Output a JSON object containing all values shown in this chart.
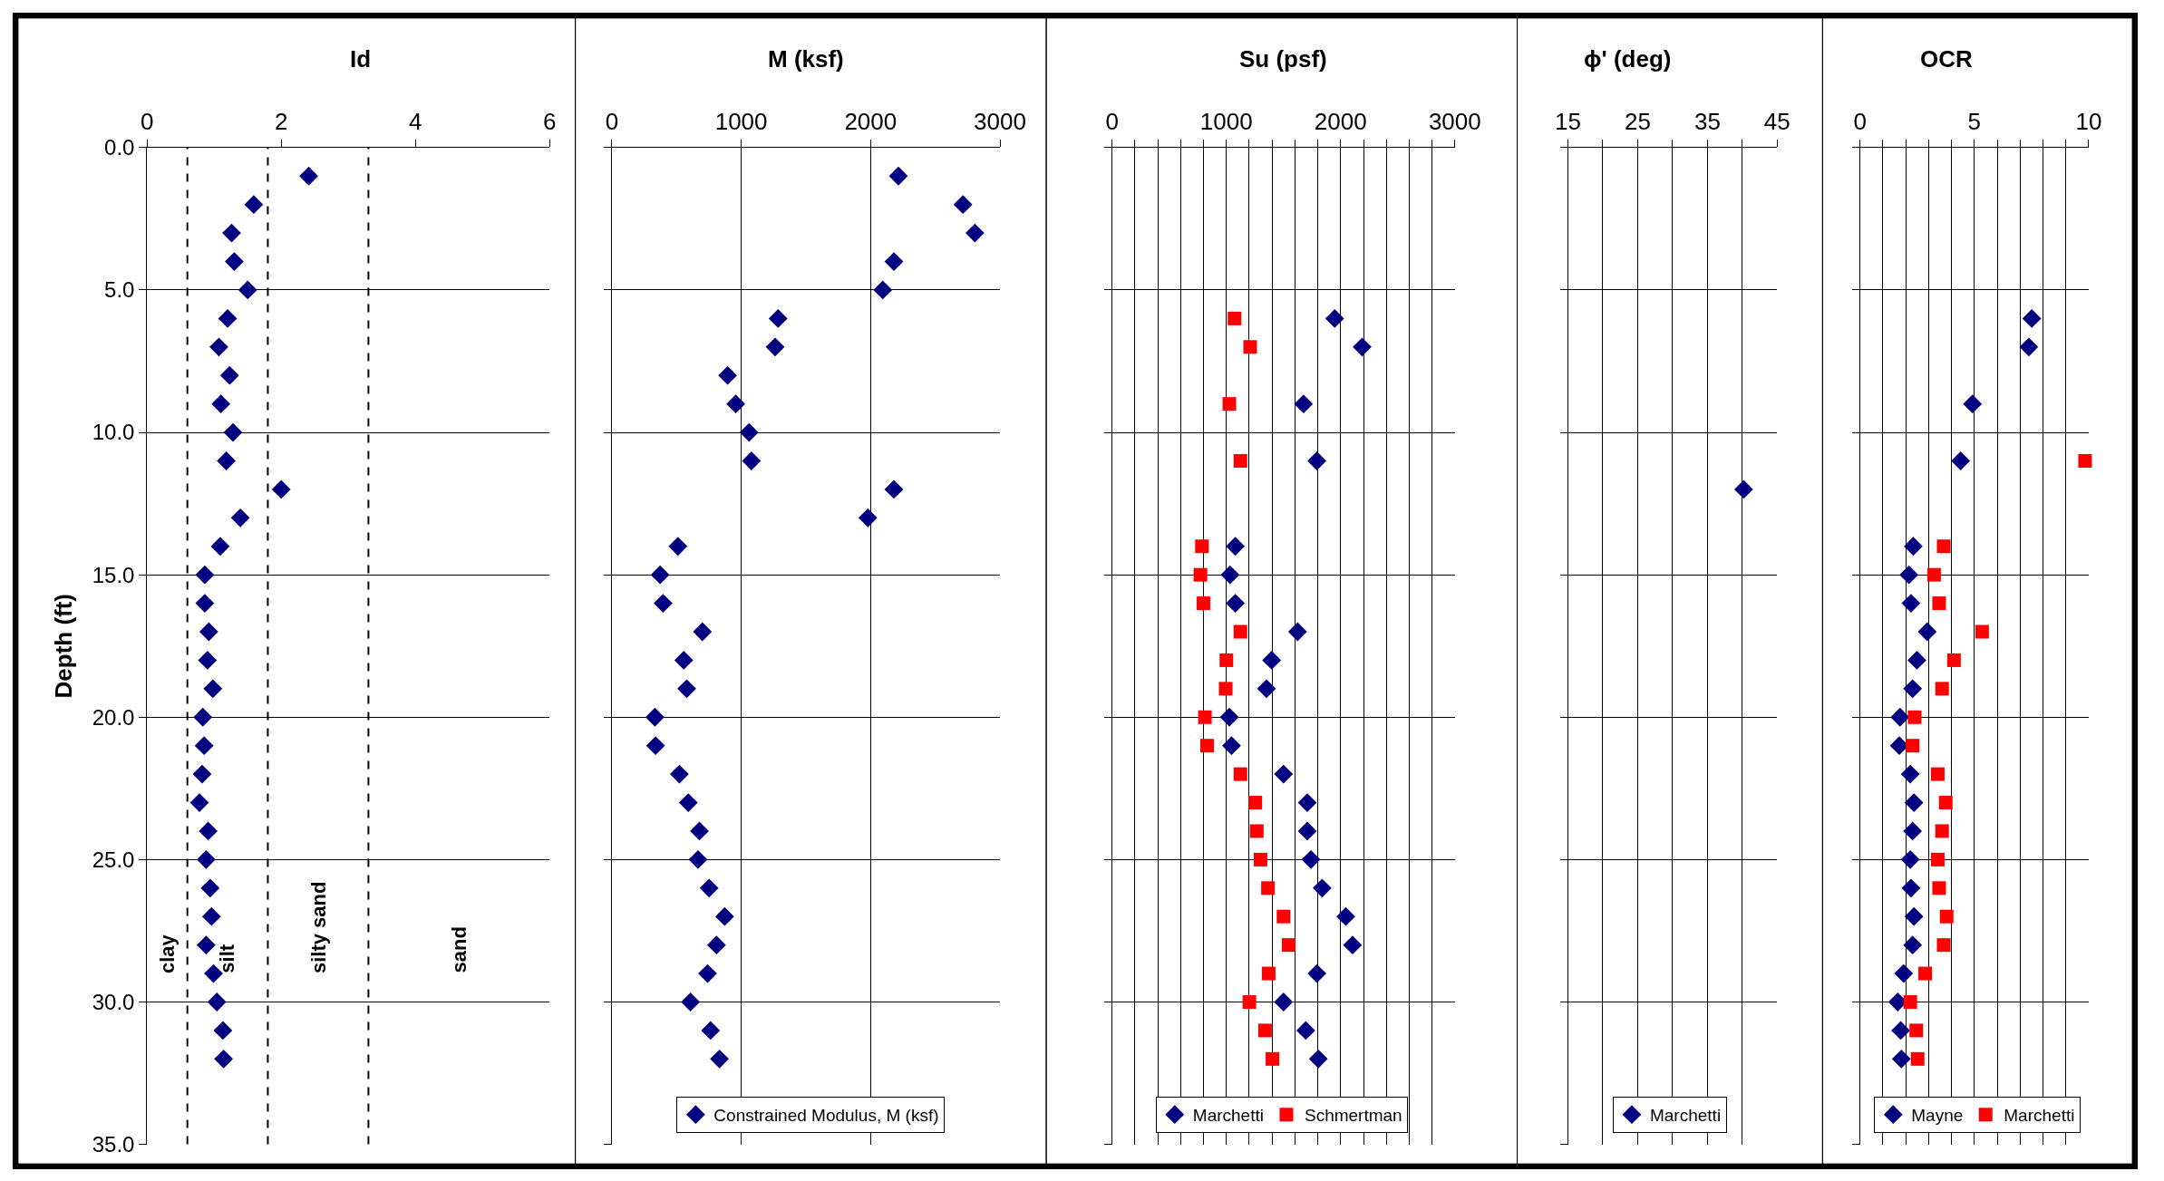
{
  "chart_data": [
    {
      "type": "scatter",
      "title": "Id",
      "ylabel": "Depth (ft)",
      "xlim": [
        0,
        6
      ],
      "xticks": [
        0,
        2,
        4,
        6
      ],
      "ylim": [
        35,
        0
      ],
      "yticks": [
        {
          "value": 0,
          "label": "0.0"
        },
        {
          "value": 5,
          "label": "5.0"
        },
        {
          "value": 10,
          "label": "10.0"
        },
        {
          "value": 15,
          "label": "15.0"
        },
        {
          "value": 20,
          "label": "20.0"
        },
        {
          "value": 25,
          "label": "25.0"
        },
        {
          "value": 30,
          "label": "30.0"
        },
        {
          "value": 35,
          "label": "35.0"
        }
      ],
      "grid": "y",
      "marker": "diamond",
      "series": [
        {
          "color": "#000080",
          "x": [
            2.41,
            1.59,
            1.26,
            1.3,
            1.5,
            1.2,
            1.07,
            1.23,
            1.1,
            1.28,
            1.18,
            2.0,
            1.39,
            1.09,
            0.86,
            0.86,
            0.92,
            0.9,
            0.98,
            0.83,
            0.85,
            0.82,
            0.78,
            0.91,
            0.88,
            0.94,
            0.96,
            0.88,
            0.99,
            1.04,
            1.13,
            1.14
          ],
          "values": [
            1,
            2,
            3,
            4,
            5,
            6,
            7,
            8,
            9,
            10,
            11,
            12,
            13,
            14,
            15,
            16,
            17,
            18,
            19,
            20,
            21,
            22,
            23,
            24,
            25,
            26,
            27,
            28,
            29,
            30,
            31,
            32
          ]
        }
      ],
      "ref_lines": [
        {
          "axis": "x",
          "value": 0.6,
          "color": "#000000",
          "line_style": "dashed"
        },
        {
          "axis": "x",
          "value": 1.8,
          "color": "#000000",
          "line_style": "dashed"
        },
        {
          "axis": "x",
          "value": 3.3,
          "color": "#000000",
          "line_style": "dashed"
        }
      ],
      "annotations": [
        "clay",
        "silt",
        "silty sand",
        "sand"
      ]
    },
    {
      "type": "scatter",
      "title": "M (ksf)",
      "xlim": [
        0,
        3000
      ],
      "xticks": [
        0,
        1000,
        2000,
        3000
      ],
      "ylim": [
        35,
        0
      ],
      "yticks": [
        0,
        5,
        10,
        15,
        20,
        25,
        30,
        35
      ],
      "tick_labels": "x",
      "grid": true,
      "legend": "bottom",
      "marker": "diamond",
      "series": [
        {
          "name": "Constrained Modulus, M (ksf)",
          "color": "#000080",
          "x": [
            2215,
            2714,
            2806,
            2180,
            2094,
            1285,
            1262,
            895,
            958,
            1061,
            1079,
            2180,
            1979,
            511,
            373,
            396,
            700,
            556,
            579,
            333,
            338,
            522,
            591,
            677,
            666,
            752,
            872,
            809,
            740,
            608,
            763,
            832
          ],
          "values": [
            1,
            2,
            3,
            4,
            5,
            6,
            7,
            8,
            9,
            10,
            11,
            12,
            13,
            14,
            15,
            16,
            17,
            18,
            19,
            20,
            21,
            22,
            23,
            24,
            25,
            26,
            27,
            28,
            29,
            30,
            31,
            32
          ]
        }
      ]
    },
    {
      "type": "scatter",
      "title": "Su (psf)",
      "xlim": [
        0,
        3000
      ],
      "xticks": [
        0,
        {
          "value": 200,
          "label": null
        },
        {
          "value": 400,
          "label": null
        },
        {
          "value": 600,
          "label": null
        },
        {
          "value": 800,
          "label": null
        },
        1000,
        {
          "value": 1200,
          "label": null
        },
        {
          "value": 1400,
          "label": null
        },
        {
          "value": 1600,
          "label": null
        },
        {
          "value": 1800,
          "label": null
        },
        2000,
        {
          "value": 2200,
          "label": null
        },
        {
          "value": 2400,
          "label": null
        },
        {
          "value": 2600,
          "label": null
        },
        {
          "value": 2800,
          "label": null
        },
        3000
      ],
      "ylim": [
        35,
        0
      ],
      "yticks": [
        0,
        5,
        10,
        15,
        20,
        25,
        30,
        35
      ],
      "tick_labels": "x",
      "grid": true,
      "legend": "bottom",
      "series": [
        {
          "name": "Marchetti",
          "color": "#000080",
          "marker": "diamond",
          "x": [
            1948,
            2188,
            1675,
            1792,
            1078,
            1032,
            1078,
            1623,
            1396,
            1351,
            1026,
            1045,
            1500,
            1708,
            1708,
            1740,
            1838,
            2045,
            2104,
            1792,
            1500,
            1695,
            1805
          ],
          "values": [
            6,
            7,
            9,
            11,
            14,
            15,
            16,
            17,
            18,
            19,
            20,
            21,
            22,
            23,
            24,
            25,
            26,
            27,
            28,
            29,
            30,
            31,
            32
          ]
        },
        {
          "name": "Schmertman",
          "color": "#ff0000",
          "marker": "square",
          "x": [
            1071,
            1208,
            1026,
            1123,
            786,
            773,
            799,
            1123,
            1000,
            994,
            812,
            831,
            1123,
            1253,
            1266,
            1299,
            1364,
            1500,
            1545,
            1370,
            1201,
            1338,
            1403
          ],
          "values": [
            6,
            7,
            9,
            11,
            14,
            15,
            16,
            17,
            18,
            19,
            20,
            21,
            22,
            23,
            24,
            25,
            26,
            27,
            28,
            29,
            30,
            31,
            32
          ]
        }
      ]
    },
    {
      "type": "scatter",
      "title": "ϕ' (deg)",
      "xlim": [
        15,
        45
      ],
      "xticks": [
        15,
        {
          "value": 20,
          "label": null
        },
        25,
        {
          "value": 30,
          "label": null
        },
        35,
        {
          "value": 40,
          "label": null
        },
        45
      ],
      "ylim": [
        35,
        0
      ],
      "yticks": [
        0,
        5,
        10,
        15,
        20,
        25,
        30,
        35
      ],
      "tick_labels": "x",
      "grid": true,
      "legend": "bottom",
      "marker": "diamond",
      "series": [
        {
          "name": "Marchetti",
          "color": "#000080",
          "x": [
            40.2
          ],
          "values": [
            12
          ]
        }
      ]
    },
    {
      "type": "scatter",
      "title": "OCR",
      "xlim": [
        0,
        10
      ],
      "xticks": [
        0,
        {
          "value": 1,
          "label": null
        },
        {
          "value": 2,
          "label": null
        },
        {
          "value": 3,
          "label": null
        },
        {
          "value": 4,
          "label": null
        },
        5,
        {
          "value": 6,
          "label": null
        },
        {
          "value": 7,
          "label": null
        },
        {
          "value": 8,
          "label": null
        },
        {
          "value": 9,
          "label": null
        },
        10
      ],
      "ylim": [
        35,
        0
      ],
      "yticks": [
        0,
        5,
        10,
        15,
        20,
        25,
        30,
        35
      ],
      "tick_labels": "x",
      "grid": true,
      "legend": "bottom",
      "series": [
        {
          "name": "Mayne",
          "color": "#000080",
          "marker": "diamond",
          "x": [
            7.51,
            7.38,
            4.92,
            4.4,
            2.33,
            2.14,
            2.23,
            2.94,
            2.49,
            2.3,
            1.75,
            1.72,
            2.2,
            2.36,
            2.3,
            2.2,
            2.23,
            2.36,
            2.3,
            1.91,
            1.65,
            1.78,
            1.81
          ],
          "values": [
            6,
            7,
            9,
            11,
            14,
            15,
            16,
            17,
            18,
            19,
            20,
            21,
            22,
            23,
            24,
            25,
            26,
            27,
            28,
            29,
            30,
            31,
            32
          ]
        },
        {
          "name": "Marchetti",
          "color": "#ff0000",
          "marker": "square",
          "x": [
            9.84,
            3.66,
            3.24,
            3.46,
            5.34,
            4.11,
            3.59,
            2.39,
            2.3,
            3.4,
            3.75,
            3.59,
            3.4,
            3.46,
            3.79,
            3.66,
            2.85,
            2.2,
            2.46,
            2.52
          ],
          "values": [
            11,
            14,
            15,
            16,
            17,
            18,
            19,
            20,
            21,
            22,
            23,
            24,
            25,
            26,
            27,
            28,
            29,
            30,
            31,
            32
          ]
        }
      ]
    }
  ]
}
